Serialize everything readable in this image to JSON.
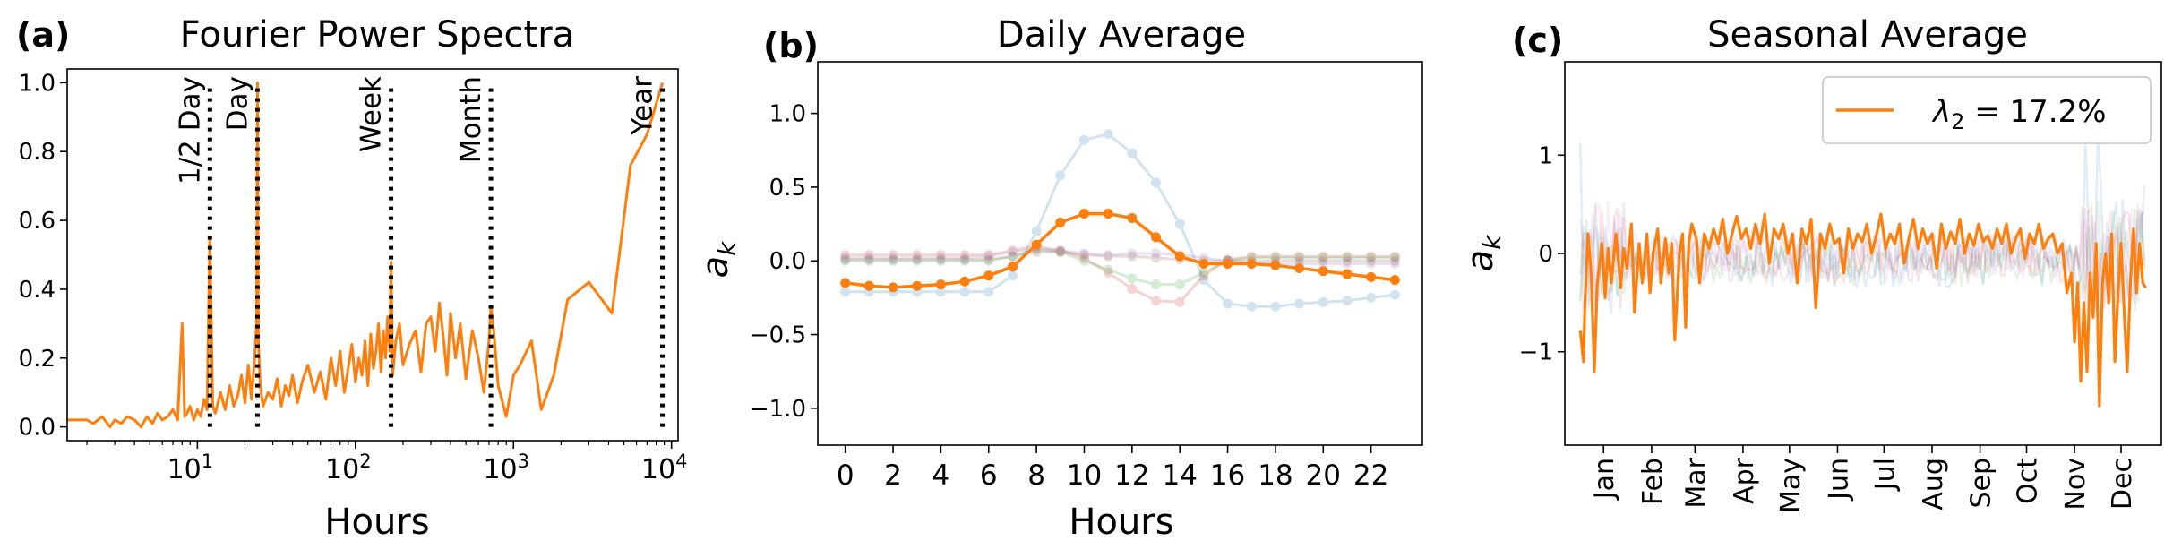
{
  "colors": {
    "orange": "#ff7f0e",
    "blue": "#1f77b4",
    "green": "#2ca02c",
    "red": "#d62728",
    "purple": "#9467bd",
    "brown": "#8c564b",
    "pink": "#e377c2",
    "gray": "#7f7f7f"
  },
  "chart_data": [
    {
      "panel_label": "(a)",
      "type": "line",
      "title": "Fourier Power Spectra",
      "xlabel": "Hours",
      "ylabel": "",
      "xscale": "log",
      "xlim": [
        1.5,
        11000
      ],
      "ylim": [
        -0.04,
        1.04
      ],
      "xticks": [
        {
          "v": 10,
          "b": "10",
          "e": "1"
        },
        {
          "v": 100,
          "b": "10",
          "e": "2"
        },
        {
          "v": 1000,
          "b": "10",
          "e": "3"
        },
        {
          "v": 10000,
          "b": "10",
          "e": "4"
        }
      ],
      "yticks": [
        {
          "v": 0,
          "label": "0.0"
        },
        {
          "v": 0.2,
          "label": "0.2"
        },
        {
          "v": 0.4,
          "label": "0.4"
        },
        {
          "v": 0.6,
          "label": "0.6"
        },
        {
          "v": 0.8,
          "label": "0.8"
        },
        {
          "v": 1.0,
          "label": "1.0"
        }
      ],
      "markers": [
        {
          "x": 12,
          "label": "1/2 Day"
        },
        {
          "x": 24,
          "label": "Day"
        },
        {
          "x": 168,
          "label": "Week"
        },
        {
          "x": 720,
          "label": "Month"
        },
        {
          "x": 8760,
          "label": "Year"
        }
      ],
      "series": [
        {
          "x": [
            1.5,
            2.0,
            2.2,
            2.5,
            2.8,
            3.0,
            3.3,
            3.6,
            4.0,
            4.4,
            4.8,
            5.2,
            5.6,
            6.0,
            6.5,
            7.0,
            7.5,
            8.0,
            8.3,
            8.6,
            9.0,
            9.5,
            10,
            10.5,
            11,
            11.5,
            12,
            12.5,
            13,
            14,
            15,
            16,
            17,
            18,
            19,
            20,
            21,
            22,
            23,
            23.7,
            24,
            24.3,
            25,
            26,
            28,
            30,
            32,
            34,
            36,
            38,
            40,
            43,
            46,
            50,
            55,
            60,
            65,
            70,
            75,
            80,
            85,
            90,
            95,
            100,
            105,
            110,
            115,
            120,
            125,
            130,
            135,
            140,
            145,
            150,
            155,
            160,
            165,
            168,
            172,
            180,
            190,
            200,
            220,
            240,
            260,
            280,
            300,
            320,
            340,
            360,
            380,
            400,
            430,
            460,
            500,
            550,
            600,
            650,
            700,
            720,
            750,
            800,
            900,
            1000,
            1100,
            1300,
            1500,
            1800,
            2200,
            3000,
            4200,
            5500,
            7000,
            8760
          ],
          "y": [
            0.02,
            0.02,
            0.01,
            0.03,
            0.0,
            0.02,
            0.01,
            0.03,
            0.02,
            0.0,
            0.03,
            0.01,
            0.04,
            0.02,
            0.03,
            0.05,
            0.02,
            0.3,
            0.03,
            0.04,
            0.06,
            0.02,
            0.05,
            0.03,
            0.08,
            0.05,
            0.55,
            0.06,
            0.04,
            0.1,
            0.05,
            0.12,
            0.06,
            0.09,
            0.15,
            0.07,
            0.18,
            0.08,
            0.2,
            0.3,
            1.0,
            0.25,
            0.12,
            0.06,
            0.1,
            0.08,
            0.14,
            0.06,
            0.12,
            0.09,
            0.15,
            0.07,
            0.13,
            0.18,
            0.1,
            0.16,
            0.08,
            0.2,
            0.12,
            0.22,
            0.1,
            0.17,
            0.24,
            0.13,
            0.2,
            0.15,
            0.25,
            0.12,
            0.27,
            0.17,
            0.22,
            0.3,
            0.16,
            0.28,
            0.2,
            0.32,
            0.22,
            0.48,
            0.15,
            0.25,
            0.3,
            0.18,
            0.24,
            0.28,
            0.16,
            0.3,
            0.32,
            0.22,
            0.36,
            0.26,
            0.15,
            0.33,
            0.2,
            0.3,
            0.14,
            0.28,
            0.2,
            0.1,
            0.25,
            0.35,
            0.28,
            0.12,
            0.03,
            0.15,
            0.18,
            0.25,
            0.05,
            0.15,
            0.37,
            0.42,
            0.33,
            0.76,
            0.85,
            1.0
          ]
        }
      ]
    },
    {
      "panel_label": "(b)",
      "type": "line",
      "title": "Daily Average",
      "xlabel": "Hours",
      "ylabel": "a_k",
      "xlim": [
        -1.15,
        24.15
      ],
      "ylim": [
        -1.25,
        1.35
      ],
      "xticks": [
        0,
        2,
        4,
        6,
        8,
        10,
        12,
        14,
        16,
        18,
        20,
        22
      ],
      "yticks": [
        {
          "v": 1.0,
          "label": "1.0"
        },
        {
          "v": 0.5,
          "label": "0.5"
        },
        {
          "v": 0.0,
          "label": "0.0"
        },
        {
          "v": -0.5,
          "label": "−0.5"
        },
        {
          "v": -1.0,
          "label": "−1.0"
        }
      ],
      "x": [
        0,
        1,
        2,
        3,
        4,
        5,
        6,
        7,
        8,
        9,
        10,
        11,
        12,
        13,
        14,
        15,
        16,
        17,
        18,
        19,
        20,
        21,
        22,
        23
      ],
      "series": [
        {
          "color": "blue",
          "faded": true,
          "values": [
            -0.21,
            -0.21,
            -0.21,
            -0.21,
            -0.21,
            -0.21,
            -0.21,
            -0.1,
            0.2,
            0.58,
            0.82,
            0.86,
            0.73,
            0.53,
            0.25,
            -0.13,
            -0.29,
            -0.31,
            -0.31,
            -0.29,
            -0.28,
            -0.27,
            -0.25,
            -0.23
          ]
        },
        {
          "color": "red",
          "faded": true,
          "values": [
            0.04,
            0.04,
            0.04,
            0.04,
            0.04,
            0.04,
            0.04,
            0.07,
            0.1,
            0.07,
            0.02,
            -0.08,
            -0.19,
            -0.27,
            -0.28,
            -0.1,
            0.01,
            0.03,
            0.03,
            0.03,
            0.03,
            0.03,
            0.03,
            0.03
          ]
        },
        {
          "color": "green",
          "faded": true,
          "values": [
            0.0,
            0.0,
            0.0,
            0.0,
            0.0,
            0.0,
            0.0,
            0.03,
            0.08,
            0.06,
            0.0,
            -0.06,
            -0.12,
            -0.16,
            -0.16,
            -0.08,
            0.0,
            0.02,
            0.02,
            0.02,
            0.02,
            0.02,
            0.02,
            0.02
          ]
        },
        {
          "color": "purple",
          "faded": true,
          "values": [
            0.02,
            0.02,
            0.02,
            0.02,
            0.02,
            0.02,
            0.03,
            0.06,
            0.08,
            0.07,
            0.05,
            0.04,
            0.05,
            0.05,
            0.04,
            0.02,
            0.0,
            -0.02,
            -0.02,
            -0.02,
            -0.02,
            -0.02,
            -0.02,
            -0.02
          ]
        },
        {
          "color": "brown",
          "faded": true,
          "values": [
            0.01,
            0.01,
            0.01,
            0.01,
            0.01,
            0.01,
            0.01,
            0.03,
            0.06,
            0.06,
            0.04,
            0.03,
            0.03,
            0.02,
            0.01,
            0.0,
            0.0,
            0.0,
            0.0,
            0.0,
            0.0,
            0.0,
            0.0,
            0.0
          ]
        },
        {
          "color": "orange",
          "faded": false,
          "values": [
            -0.15,
            -0.17,
            -0.18,
            -0.17,
            -0.16,
            -0.14,
            -0.1,
            -0.04,
            0.11,
            0.26,
            0.32,
            0.32,
            0.29,
            0.16,
            0.03,
            -0.02,
            -0.02,
            -0.02,
            -0.03,
            -0.05,
            -0.07,
            -0.09,
            -0.11,
            -0.13
          ]
        }
      ]
    },
    {
      "panel_label": "(c)",
      "type": "line",
      "title": "Seasonal Average",
      "xlabel": "",
      "ylabel": "a_k",
      "xlim": [
        -10,
        375
      ],
      "ylim": [
        -1.95,
        1.95
      ],
      "xticks": [
        {
          "v": 15,
          "label": "Jan"
        },
        {
          "v": 46,
          "label": "Feb"
        },
        {
          "v": 74,
          "label": "Mar"
        },
        {
          "v": 105,
          "label": "Apr"
        },
        {
          "v": 135,
          "label": "May"
        },
        {
          "v": 166,
          "label": "Jun"
        },
        {
          "v": 196,
          "label": "Jul"
        },
        {
          "v": 227,
          "label": "Aug"
        },
        {
          "v": 258,
          "label": "Sep"
        },
        {
          "v": 288,
          "label": "Oct"
        },
        {
          "v": 319,
          "label": "Nov"
        },
        {
          "v": 349,
          "label": "Dec"
        }
      ],
      "yticks": [
        {
          "v": 1,
          "label": "1"
        },
        {
          "v": 0,
          "label": "0"
        },
        {
          "v": -1,
          "label": "−1"
        }
      ],
      "legend": {
        "position": "upper-right",
        "entries": [
          {
            "symbol": "λ",
            "sub": "2",
            "text": " = 17.2%"
          }
        ]
      },
      "series": [
        {
          "color": "orange",
          "name": "λ2 = 17.2%",
          "x": [
            0,
            2,
            3,
            5,
            7,
            9,
            11,
            14,
            16,
            18,
            20,
            23,
            26,
            28,
            30,
            33,
            35,
            38,
            40,
            43,
            45,
            47,
            50,
            52,
            55,
            57,
            59,
            61,
            64,
            66,
            68,
            70,
            72,
            75,
            77,
            80,
            83,
            86,
            89,
            92,
            95,
            98,
            101,
            104,
            107,
            110,
            113,
            116,
            119,
            122,
            125,
            128,
            131,
            134,
            137,
            140,
            143,
            146,
            149,
            152,
            155,
            158,
            161,
            164,
            167,
            170,
            173,
            176,
            179,
            182,
            185,
            188,
            191,
            194,
            197,
            200,
            203,
            206,
            209,
            212,
            215,
            218,
            221,
            224,
            227,
            230,
            233,
            236,
            239,
            242,
            245,
            248,
            251,
            254,
            257,
            260,
            263,
            266,
            269,
            272,
            275,
            278,
            281,
            284,
            287,
            290,
            293,
            296,
            299,
            302,
            305,
            308,
            311,
            314,
            317,
            319,
            321,
            323,
            325,
            327,
            329,
            331,
            333,
            335,
            337,
            339,
            341,
            343,
            345,
            347,
            349,
            351,
            353,
            355,
            357,
            359,
            361,
            363,
            365
          ],
          "y": [
            -0.78,
            -1.1,
            -0.5,
            0.2,
            -0.2,
            -1.2,
            -0.3,
            0.1,
            -0.45,
            0.05,
            -0.3,
            0.2,
            -0.35,
            0.05,
            -0.15,
            0.3,
            -0.6,
            0.1,
            -0.3,
            0.2,
            -0.4,
            0.0,
            0.25,
            -0.3,
            0.15,
            -0.2,
            0.1,
            -0.88,
            0.0,
            0.2,
            -0.75,
            0.1,
            0.3,
            0.15,
            -0.3,
            0.2,
            0.05,
            0.25,
            0.1,
            0.35,
            0.0,
            0.2,
            0.38,
            0.15,
            0.25,
            0.05,
            0.3,
            0.1,
            0.4,
            -0.1,
            0.25,
            0.15,
            0.3,
            0.0,
            0.2,
            -0.3,
            0.25,
            0.1,
            0.35,
            -0.55,
            0.2,
            0.05,
            0.3,
            0.1,
            0.15,
            -0.2,
            0.25,
            0.05,
            0.2,
            0.12,
            0.3,
            0.0,
            0.18,
            0.4,
            0.05,
            0.2,
            0.1,
            0.3,
            -0.1,
            0.15,
            0.35,
            0.05,
            0.25,
            0.1,
            0.2,
            -0.15,
            0.3,
            0.05,
            0.22,
            0.1,
            0.35,
            0.0,
            0.2,
            0.08,
            0.3,
            0.12,
            0.18,
            0.05,
            0.25,
            0.1,
            0.3,
            0.0,
            0.15,
            0.25,
            -0.05,
            0.2,
            0.1,
            0.3,
            0.05,
            0.15,
            0.2,
            0.0,
            0.1,
            -0.4,
            -0.2,
            -0.9,
            -0.3,
            -1.3,
            -0.5,
            -1.2,
            -0.2,
            -0.65,
            0.1,
            -1.55,
            -0.3,
            0.0,
            -0.5,
            0.2,
            -1.1,
            -0.4,
            0.1,
            -0.6,
            -1.2,
            -0.3,
            0.25,
            -0.4,
            0.1,
            -0.3,
            -0.35
          ]
        }
      ]
    }
  ]
}
